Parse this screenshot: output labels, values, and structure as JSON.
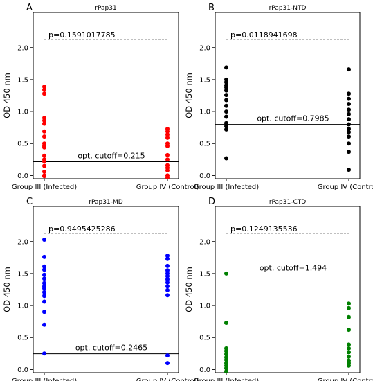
{
  "chart_data": [
    {
      "panel": "A",
      "type": "scatter",
      "title": "rPap31",
      "ylabel": "OD 450 nm",
      "categories": [
        "Group III (Infected)",
        "Group IV (Control)"
      ],
      "ylim": [
        -0.05,
        2.55
      ],
      "yticks": [
        "0.0",
        "0.5",
        "1.0",
        "1.5",
        "2.0"
      ],
      "color": "#ff0000",
      "series": [
        {
          "values": [
            1.39,
            1.34,
            1.28,
            0.9,
            0.86,
            0.81,
            0.69,
            0.61,
            0.5,
            0.46,
            0.44,
            0.31,
            0.25,
            0.22,
            0.15,
            0.06,
            0.0,
            -0.01
          ]
        },
        {
          "values": [
            0.73,
            0.69,
            0.64,
            0.59,
            0.5,
            0.46,
            0.32,
            0.25,
            0.16,
            0.12,
            0.08,
            0.0,
            -0.03
          ]
        }
      ],
      "p_value": "p=0.1591017785",
      "p_line_y": 2.13,
      "cutoff": 0.215,
      "cutoff_label": "opt. cutoff=0.215"
    },
    {
      "panel": "B",
      "type": "scatter",
      "title": "rPap31-NTD",
      "ylabel": "OD 450 nm",
      "categories": [
        "Group III (Infected)",
        "Group IV (Control)"
      ],
      "ylim": [
        -0.05,
        2.55
      ],
      "yticks": [
        "0.0",
        "0.5",
        "1.0",
        "1.5",
        "2.0"
      ],
      "color": "#000000",
      "series": [
        {
          "values": [
            1.69,
            1.5,
            1.46,
            1.41,
            1.38,
            1.33,
            1.26,
            1.18,
            1.09,
            1.0,
            0.92,
            0.82,
            0.77,
            0.72,
            0.27
          ]
        },
        {
          "values": [
            1.66,
            1.28,
            1.2,
            1.12,
            1.03,
            0.96,
            0.88,
            0.8,
            0.73,
            0.68,
            0.61,
            0.5,
            0.37,
            0.09
          ]
        }
      ],
      "p_value": "p=0.0118941698",
      "p_line_y": 2.13,
      "cutoff": 0.7985,
      "cutoff_label": "opt. cutoff=0.7985"
    },
    {
      "panel": "C",
      "type": "scatter",
      "title": "rPap31-MD",
      "ylabel": "OD 450 nm",
      "categories": [
        "Group III (Infected)",
        "Group IV (Control)"
      ],
      "ylim": [
        -0.05,
        2.55
      ],
      "yticks": [
        "0.0",
        "0.5",
        "1.0",
        "1.5",
        "2.0"
      ],
      "color": "#0000ff",
      "series": [
        {
          "values": [
            2.03,
            1.76,
            1.61,
            1.56,
            1.48,
            1.42,
            1.35,
            1.3,
            1.27,
            1.21,
            1.15,
            1.06,
            0.9,
            0.7,
            0.25
          ]
        },
        {
          "values": [
            1.78,
            1.73,
            1.62,
            1.55,
            1.5,
            1.46,
            1.41,
            1.36,
            1.3,
            1.24,
            1.16,
            0.22,
            0.1
          ]
        }
      ],
      "p_value": "p=0.9495425286",
      "p_line_y": 2.13,
      "cutoff": 0.2465,
      "cutoff_label": "opt. cutoff=0.2465"
    },
    {
      "panel": "D",
      "type": "scatter",
      "title": "rPap31-CTD",
      "ylabel": "OD 450 nm",
      "categories": [
        "Group III (Infected)",
        "Group IV (Control)"
      ],
      "ylim": [
        -0.05,
        2.55
      ],
      "yticks": [
        "0.0",
        "0.5",
        "1.0",
        "1.5",
        "2.0"
      ],
      "color": "#008000",
      "series": [
        {
          "values": [
            1.5,
            0.73,
            0.33,
            0.29,
            0.24,
            0.19,
            0.15,
            0.1,
            0.06,
            0.02,
            -0.03
          ]
        },
        {
          "values": [
            1.03,
            0.96,
            0.82,
            0.62,
            0.39,
            0.33,
            0.27,
            0.2,
            0.14,
            0.1,
            0.06
          ]
        }
      ],
      "p_value": "p=0.1249135536",
      "p_line_y": 2.13,
      "cutoff": 1.494,
      "cutoff_label": "opt. cutoff=1.494"
    }
  ]
}
